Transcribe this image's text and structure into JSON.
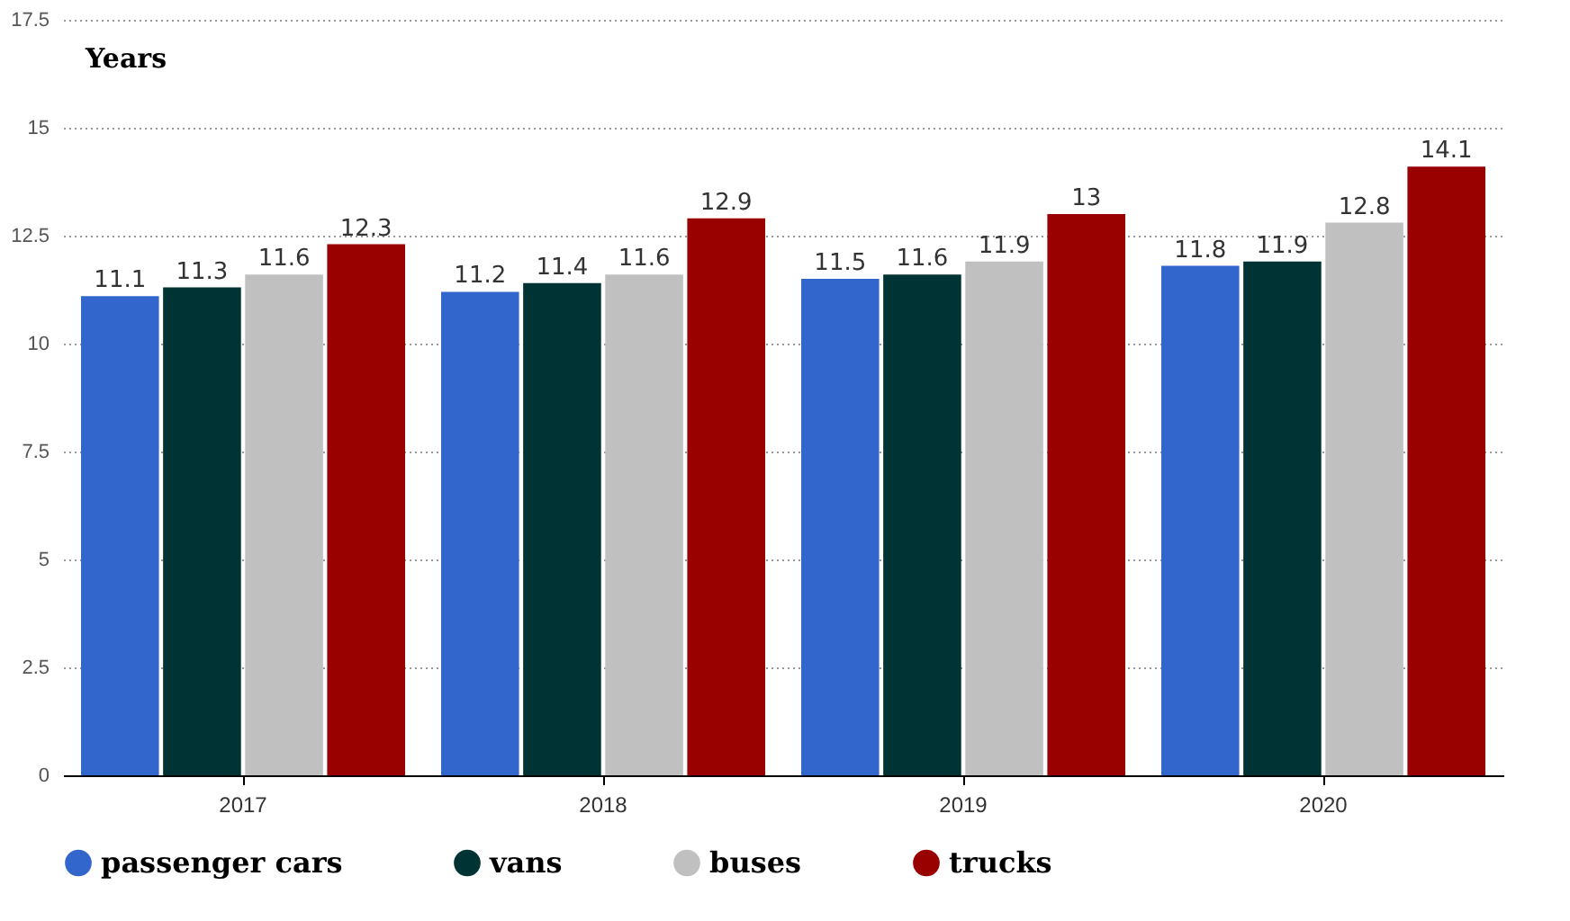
{
  "chart_data": {
    "type": "bar",
    "ylabel": "Years",
    "categories": [
      "2017",
      "2018",
      "2019",
      "2020"
    ],
    "series": [
      {
        "name": "passenger cars",
        "color": "#3366cc",
        "values": [
          11.1,
          11.2,
          11.5,
          11.8
        ]
      },
      {
        "name": "vans",
        "color": "#003333",
        "values": [
          11.3,
          11.4,
          11.6,
          11.9
        ]
      },
      {
        "name": "buses",
        "color": "#c0c0c0",
        "values": [
          11.6,
          11.6,
          11.9,
          12.8
        ]
      },
      {
        "name": "trucks",
        "color": "#990000",
        "values": [
          12.3,
          12.9,
          13,
          14.1
        ]
      }
    ],
    "ylim": [
      0,
      17.5
    ],
    "yticks": [
      0,
      2.5,
      5,
      7.5,
      10,
      12.5,
      15,
      17.5
    ],
    "grid": "y",
    "legend": "bottom",
    "data_labels": true
  }
}
